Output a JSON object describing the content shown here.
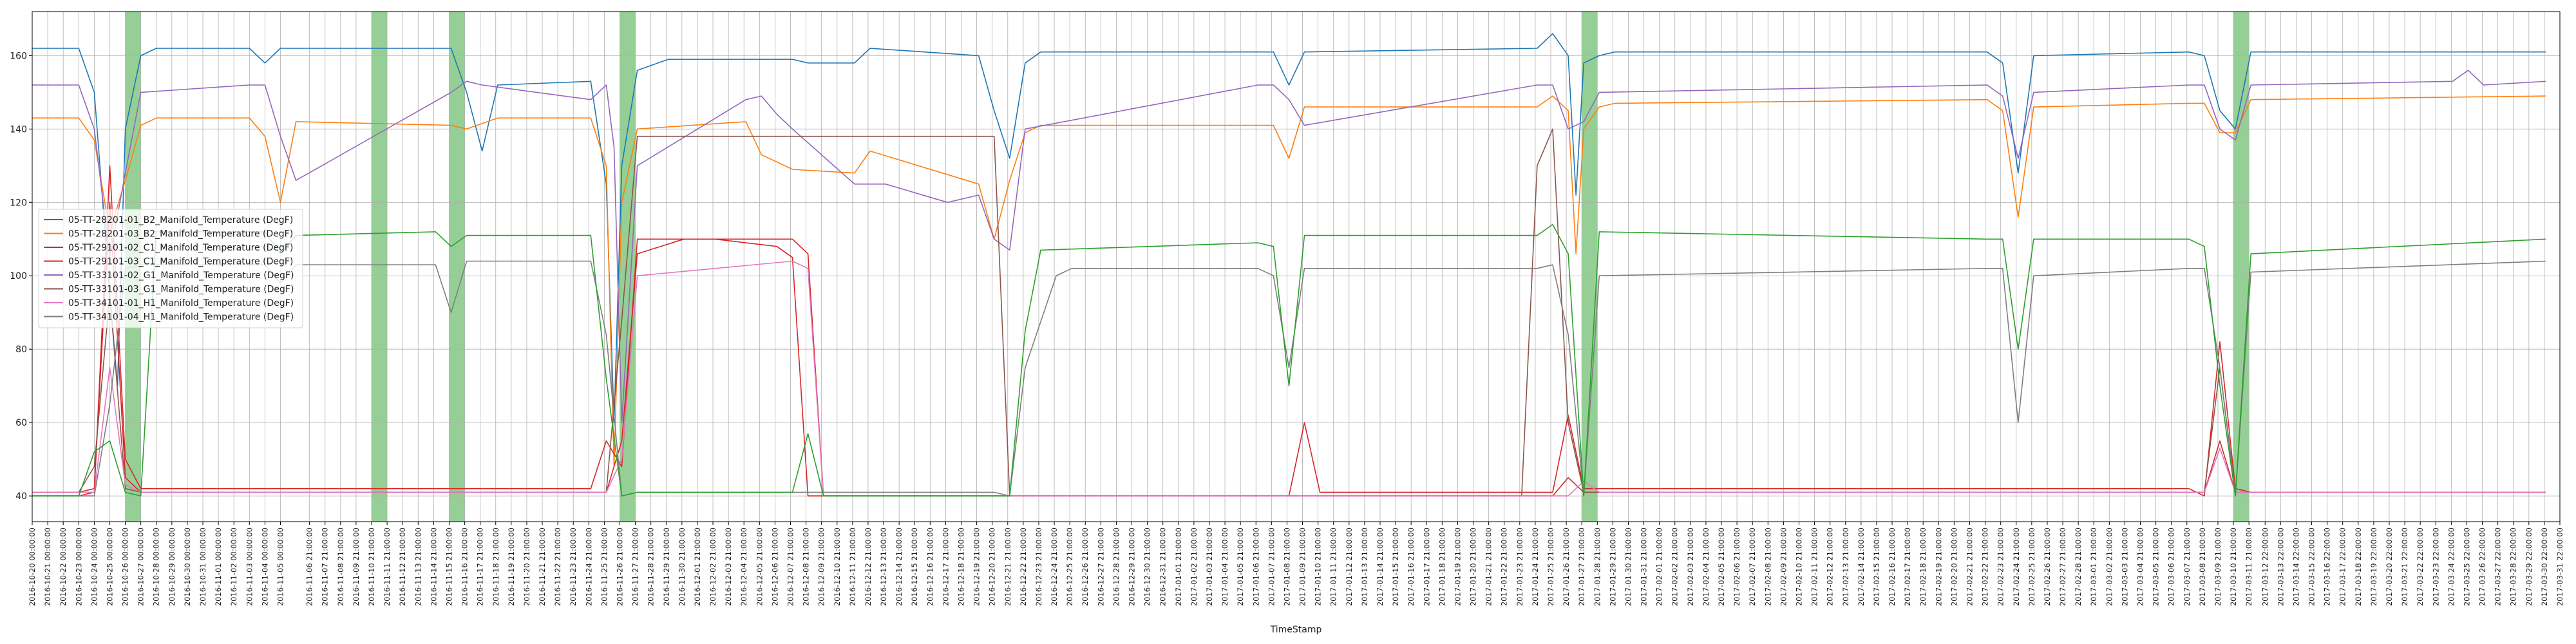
{
  "chart_data": {
    "type": "line",
    "title": "",
    "xlabel": "TimeStamp",
    "ylabel": "",
    "x_range": [
      "2016-10-20 00:00:00",
      "2017-03-31 22:00:00"
    ],
    "ylim": [
      33,
      172
    ],
    "y_ticks": [
      40,
      60,
      80,
      100,
      120,
      140,
      160
    ],
    "grid": true,
    "legend_position": "center-left",
    "x_tick_labels": [
      "2016-10-20 00:00:00",
      "2016-10-21 00:00:00",
      "2016-10-22 00:00:00",
      "2016-10-23 00:00:00",
      "2016-10-24 00:00:00",
      "2016-10-25 00:00:00",
      "2016-10-26 00:00:00",
      "2016-10-27 00:00:00",
      "2016-10-28 00:00:00",
      "2016-10-29 00:00:00",
      "2016-10-30 00:00:00",
      "2016-10-31 00:00:00",
      "2016-11-01 00:00:00",
      "2016-11-02 00:00:00",
      "2016-11-03 00:00:00",
      "2016-11-04 00:00:00",
      "2016-11-05 00:00:00",
      "2016-11-06 21:00:00",
      "2016-11-07 21:00:00",
      "2016-11-08 21:00:00",
      "2016-11-09 21:00:00",
      "2016-11-10 21:00:00",
      "2016-11-11 21:00:00",
      "2016-11-12 21:00:00",
      "2016-11-13 21:00:00",
      "2016-11-14 21:00:00",
      "2016-11-15 21:00:00",
      "2016-11-16 21:00:00",
      "2016-11-17 21:00:00",
      "2016-11-18 21:00:00",
      "2016-11-19 21:00:00",
      "2016-11-20 21:00:00",
      "2016-11-21 21:00:00",
      "2016-11-22 21:00:00",
      "2016-11-23 21:00:00",
      "2016-11-24 21:00:00",
      "2016-11-25 21:00:00",
      "2016-11-26 21:00:00",
      "2016-11-27 21:00:00",
      "2016-11-28 21:00:00",
      "2016-11-29 21:00:00",
      "2016-11-30 21:00:00",
      "2016-12-01 21:00:00",
      "2016-12-02 21:00:00",
      "2016-12-03 21:00:00",
      "2016-12-04 21:00:00",
      "2016-12-05 21:00:00",
      "2016-12-06 21:00:00",
      "2016-12-07 21:00:00",
      "2016-12-08 21:00:00",
      "2016-12-09 21:00:00",
      "2016-12-10 21:00:00",
      "2016-12-11 21:00:00",
      "2016-12-12 21:00:00",
      "2016-12-13 21:00:00",
      "2016-12-14 21:00:00",
      "2016-12-15 21:00:00",
      "2016-12-16 21:00:00",
      "2016-12-17 21:00:00",
      "2016-12-18 21:00:00",
      "2016-12-19 21:00:00",
      "2016-12-20 21:00:00",
      "2016-12-21 21:00:00",
      "2016-12-22 21:00:00",
      "2016-12-23 21:00:00",
      "2016-12-24 21:00:00",
      "2016-12-25 21:00:00",
      "2016-12-26 21:00:00",
      "2016-12-27 21:00:00",
      "2016-12-28 21:00:00",
      "2016-12-29 21:00:00",
      "2016-12-30 21:00:00",
      "2016-12-31 21:00:00",
      "2017-01-01 21:00:00",
      "2017-01-02 21:00:00",
      "2017-01-03 21:00:00",
      "2017-01-04 21:00:00",
      "2017-01-05 21:00:00",
      "2017-01-06 21:00:00",
      "2017-01-07 21:00:00",
      "2017-01-08 21:00:00",
      "2017-01-09 21:00:00",
      "2017-01-10 21:00:00",
      "2017-01-11 21:00:00",
      "2017-01-12 21:00:00",
      "2017-01-13 21:00:00",
      "2017-01-14 21:00:00",
      "2017-01-15 21:00:00",
      "2017-01-16 21:00:00",
      "2017-01-17 21:00:00",
      "2017-01-18 21:00:00",
      "2017-01-19 21:00:00",
      "2017-01-20 21:00:00",
      "2017-01-21 21:00:00",
      "2017-01-22 21:00:00",
      "2017-01-23 21:00:00",
      "2017-01-24 21:00:00",
      "2017-01-25 21:00:00",
      "2017-01-26 21:00:00",
      "2017-01-27 21:00:00",
      "2017-01-28 21:00:00",
      "2017-01-29 21:00:00",
      "2017-01-30 21:00:00",
      "2017-01-31 21:00:00",
      "2017-02-01 21:00:00",
      "2017-02-02 21:00:00",
      "2017-02-03 21:00:00",
      "2017-02-04 21:00:00",
      "2017-02-05 21:00:00",
      "2017-02-06 21:00:00",
      "2017-02-07 21:00:00",
      "2017-02-08 21:00:00",
      "2017-02-09 21:00:00",
      "2017-02-10 21:00:00",
      "2017-02-11 21:00:00",
      "2017-02-12 21:00:00",
      "2017-02-13 21:00:00",
      "2017-02-14 21:00:00",
      "2017-02-15 21:00:00",
      "2017-02-16 21:00:00",
      "2017-02-17 21:00:00",
      "2017-02-18 21:00:00",
      "2017-02-19 21:00:00",
      "2017-02-20 21:00:00",
      "2017-02-21 21:00:00",
      "2017-02-22 21:00:00",
      "2017-02-23 21:00:00",
      "2017-02-24 21:00:00",
      "2017-02-25 21:00:00",
      "2017-02-26 21:00:00",
      "2017-02-27 21:00:00",
      "2017-02-28 21:00:00",
      "2017-03-01 21:00:00",
      "2017-03-02 21:00:00",
      "2017-03-03 21:00:00",
      "2017-03-04 21:00:00",
      "2017-03-05 21:00:00",
      "2017-03-06 21:00:00",
      "2017-03-07 21:00:00",
      "2017-03-08 21:00:00",
      "2017-03-09 21:00:00",
      "2017-03-10 21:00:00",
      "2017-03-11 21:00:00",
      "2017-03-12 22:00:00",
      "2017-03-13 22:00:00",
      "2017-03-14 22:00:00",
      "2017-03-15 22:00:00",
      "2017-03-16 22:00:00",
      "2017-03-17 22:00:00",
      "2017-03-18 22:00:00",
      "2017-03-19 22:00:00",
      "2017-03-20 22:00:00",
      "2017-03-21 22:00:00",
      "2017-03-22 22:00:00",
      "2017-03-23 22:00:00",
      "2017-03-24 22:00:00",
      "2017-03-25 22:00:00",
      "2017-03-26 22:00:00",
      "2017-03-27 22:00:00",
      "2017-03-28 22:00:00",
      "2017-03-29 22:00:00",
      "2017-03-30 22:00:00",
      "2017-03-31 22:00:00"
    ],
    "highlight_bands": [
      {
        "start": "2016-10-26 00:00:00",
        "end": "2016-10-27 00:00:00",
        "color": "#2ca02c"
      },
      {
        "start": "2016-11-10 21:00:00",
        "end": "2016-11-11 21:00:00",
        "color": "#2ca02c"
      },
      {
        "start": "2016-11-15 21:00:00",
        "end": "2016-11-16 21:00:00",
        "color": "#2ca02c"
      },
      {
        "start": "2016-11-26 21:00:00",
        "end": "2016-11-27 21:00:00",
        "color": "#2ca02c"
      },
      {
        "start": "2017-01-27 21:00:00",
        "end": "2017-01-28 21:00:00",
        "color": "#2ca02c"
      },
      {
        "start": "2017-03-10 21:00:00",
        "end": "2017-03-11 21:00:00",
        "color": "#2ca02c"
      }
    ],
    "series": [
      {
        "name": "05-TT-28201-01_B2_Manifold_Temperature (DegF)",
        "color": "#1f77b4",
        "x": [
          "2016-10-20",
          "2016-10-23",
          "2016-10-24",
          "2016-10-25",
          "2016-10-25 12:00",
          "2016-10-26",
          "2016-10-27",
          "2016-10-28",
          "2016-11-03",
          "2016-11-04",
          "2016-11-05",
          "2016-11-06",
          "2016-11-16",
          "2016-11-17",
          "2016-11-18",
          "2016-11-19",
          "2016-11-25",
          "2016-11-26",
          "2016-11-26 12:00",
          "2016-11-27",
          "2016-11-28",
          "2016-11-30",
          "2016-12-08",
          "2016-12-09",
          "2016-12-12",
          "2016-12-13",
          "2016-12-20",
          "2016-12-21",
          "2016-12-22",
          "2016-12-23",
          "2016-12-24",
          "2017-01-07",
          "2017-01-08",
          "2017-01-09",
          "2017-01-10",
          "2017-01-25",
          "2017-01-26",
          "2017-01-27",
          "2017-01-27 12:00",
          "2017-01-28",
          "2017-01-29",
          "2017-01-30",
          "2017-02-23",
          "2017-02-24",
          "2017-02-25",
          "2017-02-26",
          "2017-03-08",
          "2017-03-09",
          "2017-03-10",
          "2017-03-11",
          "2017-03-12",
          "2017-03-31"
        ],
        "y": [
          162,
          162,
          150,
          95,
          70,
          140,
          160,
          162,
          162,
          158,
          162,
          162,
          162,
          150,
          134,
          152,
          153,
          125,
          60,
          130,
          156,
          159,
          159,
          158,
          158,
          162,
          160,
          145,
          132,
          158,
          161,
          161,
          161,
          152,
          161,
          162,
          166,
          160,
          122,
          158,
          160,
          161,
          161,
          158,
          128,
          160,
          161,
          160,
          145,
          140,
          161,
          161
        ]
      },
      {
        "name": "05-TT-28201-03_B2_Manifold_Temperature (DegF)",
        "color": "#ff7f0e",
        "x": [
          "2016-10-20",
          "2016-10-23",
          "2016-10-24",
          "2016-10-25",
          "2016-10-26",
          "2016-10-27",
          "2016-10-28",
          "2016-11-03",
          "2016-11-04",
          "2016-11-05",
          "2016-11-06",
          "2016-11-16",
          "2016-11-17",
          "2016-11-19",
          "2016-11-25",
          "2016-11-26",
          "2016-11-26 12:00",
          "2016-11-27",
          "2016-11-28",
          "2016-12-05",
          "2016-12-06",
          "2016-12-08",
          "2016-12-12",
          "2016-12-13",
          "2016-12-20",
          "2016-12-21",
          "2016-12-22",
          "2016-12-23",
          "2016-12-24",
          "2017-01-07",
          "2017-01-08",
          "2017-01-09",
          "2017-01-10",
          "2017-01-25",
          "2017-01-26",
          "2017-01-27",
          "2017-01-27 12:00",
          "2017-01-28",
          "2017-01-29",
          "2017-01-30",
          "2017-02-23",
          "2017-02-24",
          "2017-02-25",
          "2017-02-26",
          "2017-03-08",
          "2017-03-09",
          "2017-03-10",
          "2017-03-11",
          "2017-03-12",
          "2017-03-31"
        ],
        "y": [
          143,
          143,
          137,
          112,
          126,
          141,
          143,
          143,
          138,
          120,
          142,
          141,
          140,
          143,
          143,
          130,
          48,
          120,
          140,
          142,
          133,
          129,
          128,
          134,
          125,
          110,
          126,
          139,
          141,
          141,
          141,
          132,
          146,
          146,
          149,
          145,
          106,
          140,
          146,
          147,
          148,
          145,
          116,
          146,
          147,
          147,
          139,
          139,
          148,
          149
        ]
      },
      {
        "name": "05-TT-29101-02_C1_Manifold_Temperature (DegF)",
        "color": "#d62728",
        "x": [
          "2016-10-20",
          "2016-10-23",
          "2016-10-24",
          "2016-10-25",
          "2016-10-26",
          "2016-10-27",
          "2016-11-05",
          "2016-11-06",
          "2016-11-25",
          "2016-11-26",
          "2016-11-27",
          "2016-11-28",
          "2016-12-03",
          "2016-12-07",
          "2016-12-08",
          "2016-12-09",
          "2016-12-10",
          "2017-01-09",
          "2017-01-10",
          "2017-01-11",
          "2017-01-26",
          "2017-01-27",
          "2017-01-28",
          "2017-03-08",
          "2017-03-09",
          "2017-03-10",
          "2017-03-11",
          "2017-03-12",
          "2017-03-31"
        ],
        "y": [
          40,
          40,
          41,
          130,
          50,
          42,
          42,
          42,
          42,
          55,
          48,
          110,
          110,
          108,
          105,
          40,
          40,
          40,
          60,
          41,
          41,
          62,
          42,
          42,
          40,
          82,
          42,
          41,
          41
        ]
      },
      {
        "name": "05-TT-29101-03_C1_Manifold_Temperature (DegF)",
        "color": "#d62728",
        "x": [
          "2016-10-20",
          "2016-10-23",
          "2016-10-24",
          "2016-10-25",
          "2016-10-26",
          "2016-10-27",
          "2016-11-26",
          "2016-11-27",
          "2016-11-28",
          "2016-12-01",
          "2016-12-08",
          "2016-12-09",
          "2016-12-10",
          "2017-01-26",
          "2017-01-27",
          "2017-01-28",
          "2017-03-09",
          "2017-03-10",
          "2017-03-11",
          "2017-03-31"
        ],
        "y": [
          41,
          41,
          42,
          120,
          45,
          41,
          41,
          55,
          106,
          110,
          110,
          106,
          40,
          40,
          45,
          41,
          41,
          55,
          41,
          41
        ]
      },
      {
        "name": "05-TT-33101-02_G1_Manifold_Temperature (DegF)",
        "color": "#9467bd",
        "x": [
          "2016-10-20",
          "2016-10-23",
          "2016-10-24",
          "2016-10-25",
          "2016-10-26",
          "2016-10-27",
          "2016-11-03",
          "2016-11-04",
          "2016-11-05",
          "2016-11-06",
          "2016-11-16",
          "2016-11-17",
          "2016-11-18",
          "2016-11-25",
          "2016-11-26",
          "2016-11-26 12:00",
          "2016-11-27",
          "2016-11-28",
          "2016-12-05",
          "2016-12-06",
          "2016-12-07",
          "2016-12-08",
          "2016-12-12",
          "2016-12-14",
          "2016-12-18",
          "2016-12-20",
          "2016-12-21",
          "2016-12-22",
          "2016-12-23",
          "2017-01-07",
          "2017-01-08",
          "2017-01-09",
          "2017-01-10",
          "2017-01-25",
          "2017-01-26",
          "2017-01-27",
          "2017-01-28",
          "2017-01-29",
          "2017-02-23",
          "2017-02-24",
          "2017-02-25",
          "2017-02-26",
          "2017-03-08",
          "2017-03-09",
          "2017-03-10",
          "2017-03-11",
          "2017-03-12",
          "2017-03-25",
          "2017-03-26",
          "2017-03-27",
          "2017-03-31"
        ],
        "y": [
          152,
          152,
          140,
          105,
          128,
          150,
          152,
          152,
          138,
          126,
          150,
          153,
          152,
          148,
          152,
          135,
          60,
          130,
          148,
          149,
          144,
          140,
          125,
          125,
          120,
          122,
          110,
          107,
          140,
          152,
          152,
          148,
          141,
          152,
          152,
          140,
          142,
          150,
          152,
          149,
          132,
          150,
          152,
          152,
          140,
          137,
          152,
          153,
          156,
          152,
          153
        ]
      },
      {
        "name": "05-TT-33101-03_G1_Manifold_Temperature (DegF)",
        "color": "#8c564b",
        "x": [
          "2016-10-20",
          "2016-10-23",
          "2016-10-24",
          "2016-10-25",
          "2016-10-26",
          "2016-10-27",
          "2016-11-26",
          "2016-11-27",
          "2016-11-28",
          "2016-12-20",
          "2016-12-21",
          "2016-12-22",
          "2017-01-24",
          "2017-01-25",
          "2017-01-26",
          "2017-01-27",
          "2017-01-28",
          "2017-03-09",
          "2017-03-10",
          "2017-03-11",
          "2017-03-31"
        ],
        "y": [
          41,
          41,
          48,
          95,
          42,
          41,
          41,
          88,
          138,
          138,
          138,
          40,
          40,
          130,
          140,
          60,
          41,
          41,
          75,
          41,
          41
        ]
      },
      {
        "name": "05-TT-34101-01_H1_Manifold_Temperature (DegF)",
        "color": "#e377c2",
        "x": [
          "2016-10-20",
          "2016-10-23",
          "2016-10-24",
          "2016-10-25",
          "2016-10-26",
          "2016-10-27",
          "2016-11-26",
          "2016-11-27",
          "2016-11-28",
          "2016-12-08",
          "2016-12-09",
          "2016-12-10",
          "2017-01-27",
          "2017-01-28",
          "2017-01-29",
          "2017-03-09",
          "2017-03-10",
          "2017-03-11",
          "2017-03-31"
        ],
        "y": [
          41,
          41,
          41,
          75,
          43,
          41,
          41,
          50,
          100,
          104,
          102,
          40,
          40,
          44,
          41,
          41,
          53,
          41,
          41
        ]
      },
      {
        "name": "05-TT-34101-04_H1_Manifold_Temperature (DegF)",
        "color": "#7f7f7f",
        "x": [
          "2016-10-20",
          "2016-10-23",
          "2016-10-24",
          "2016-10-25",
          "2016-10-26",
          "2016-10-27",
          "2016-10-28",
          "2016-11-04",
          "2016-11-05",
          "2016-11-06",
          "2016-11-15",
          "2016-11-16",
          "2016-11-17",
          "2016-11-25",
          "2016-11-26",
          "2016-11-27",
          "2016-11-28",
          "2016-12-20",
          "2016-12-21",
          "2016-12-22",
          "2016-12-23",
          "2016-12-25",
          "2016-12-26",
          "2017-01-07",
          "2017-01-08",
          "2017-01-09",
          "2017-01-10",
          "2017-01-25",
          "2017-01-26",
          "2017-01-27",
          "2017-01-28",
          "2017-01-29",
          "2017-02-23",
          "2017-02-24",
          "2017-02-25",
          "2017-02-26",
          "2017-03-08",
          "2017-03-09",
          "2017-03-10",
          "2017-03-11",
          "2017-03-12",
          "2017-03-31"
        ],
        "y": [
          40,
          40,
          40,
          65,
          102,
          103,
          103,
          103,
          98,
          103,
          103,
          90,
          104,
          104,
          84,
          40,
          41,
          41,
          41,
          40,
          75,
          100,
          102,
          102,
          100,
          75,
          102,
          102,
          103,
          84,
          40,
          100,
          102,
          102,
          60,
          100,
          102,
          102,
          75,
          40,
          101,
          104
        ]
      },
      {
        "name": "",
        "color": "#2ca02c",
        "x": [
          "2016-10-20",
          "2016-10-23",
          "2016-10-24",
          "2016-10-25",
          "2016-10-26",
          "2016-10-27",
          "2016-10-28",
          "2016-11-03",
          "2016-11-04",
          "2016-11-05",
          "2016-11-06",
          "2016-11-15",
          "2016-11-16",
          "2016-11-17",
          "2016-11-25",
          "2016-11-26",
          "2016-11-27",
          "2016-11-28",
          "2016-12-08",
          "2016-12-09",
          "2016-12-10",
          "2016-12-22",
          "2016-12-23",
          "2016-12-24",
          "2017-01-07",
          "2017-01-08",
          "2017-01-09",
          "2017-01-10",
          "2017-01-25",
          "2017-01-26",
          "2017-01-27",
          "2017-01-28",
          "2017-01-29",
          "2017-02-23",
          "2017-02-24",
          "2017-02-25",
          "2017-02-26",
          "2017-03-08",
          "2017-03-09",
          "2017-03-10",
          "2017-03-11",
          "2017-03-12",
          "2017-03-31"
        ],
        "y": [
          40,
          40,
          52,
          55,
          41,
          40,
          112,
          112,
          112,
          106,
          111,
          112,
          108,
          111,
          111,
          72,
          40,
          41,
          41,
          57,
          40,
          40,
          85,
          107,
          109,
          108,
          70,
          111,
          111,
          114,
          106,
          40,
          112,
          110,
          110,
          80,
          110,
          110,
          108,
          70,
          40,
          106,
          110
        ]
      }
    ]
  }
}
